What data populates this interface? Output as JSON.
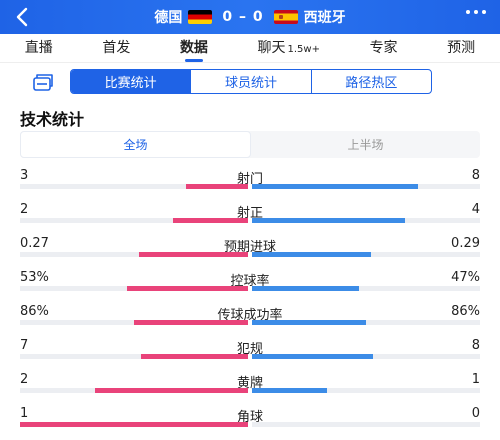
{
  "header": {
    "home_team": "德国",
    "away_team": "西班牙",
    "score": "0 – 0",
    "colors": {
      "brand": "#1f63e6",
      "home_bar": "#e9437a",
      "away_bar": "#3c8ce7"
    }
  },
  "nav": {
    "tabs": [
      {
        "label": "直播"
      },
      {
        "label": "首发"
      },
      {
        "label": "数据",
        "active": true
      },
      {
        "label": "聊天",
        "badge": "1.5w+"
      },
      {
        "label": "专家"
      },
      {
        "label": "预测"
      }
    ]
  },
  "segment": {
    "items": [
      "比赛统计",
      "球员统计",
      "路径热区"
    ],
    "active_index": 0
  },
  "section_title": "技术统计",
  "half_toggle": {
    "items": [
      "全场",
      "上半场"
    ],
    "active_index": 0
  },
  "stats": [
    {
      "label": "射门",
      "home": "3",
      "away": "8",
      "home_frac": 0.27,
      "away_frac": 0.73
    },
    {
      "label": "射正",
      "home": "2",
      "away": "4",
      "home_frac": 0.33,
      "away_frac": 0.67
    },
    {
      "label": "预期进球",
      "home": "0.27",
      "away": "0.29",
      "home_frac": 0.48,
      "away_frac": 0.52
    },
    {
      "label": "控球率",
      "home": "53%",
      "away": "47%",
      "home_frac": 0.53,
      "away_frac": 0.47
    },
    {
      "label": "传球成功率",
      "home": "86%",
      "away": "86%",
      "home_frac": 0.5,
      "away_frac": 0.5
    },
    {
      "label": "犯规",
      "home": "7",
      "away": "8",
      "home_frac": 0.47,
      "away_frac": 0.53
    },
    {
      "label": "黄牌",
      "home": "2",
      "away": "1",
      "home_frac": 0.67,
      "away_frac": 0.33
    },
    {
      "label": "角球",
      "home": "1",
      "away": "0",
      "home_frac": 1.0,
      "away_frac": 0.0
    }
  ]
}
